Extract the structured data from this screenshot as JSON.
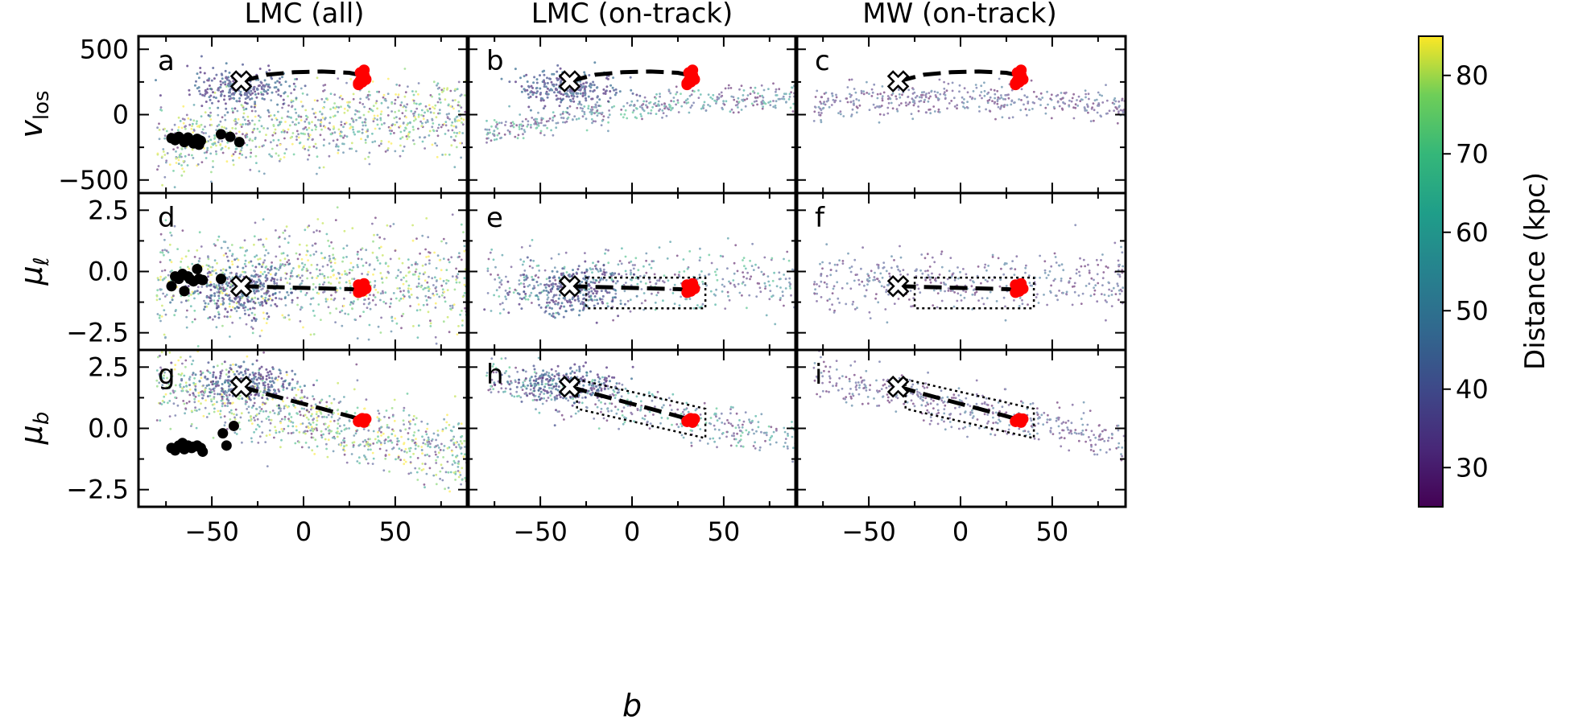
{
  "figure": {
    "column_titles": [
      "LMC (all)",
      "LMC (on-track)",
      "MW (on-track)"
    ],
    "xlabel": "b",
    "rows": [
      {
        "ylabel_main": "v",
        "ylabel_sub": "los",
        "ylim": [
          -600,
          600
        ],
        "yticks": [
          500,
          0,
          -500
        ],
        "ytick_labels": [
          "500",
          "0",
          "−500"
        ]
      },
      {
        "ylabel_main": "μ",
        "ylabel_sub": "ℓ",
        "ylim": [
          -3.2,
          3.2
        ],
        "yticks": [
          2.5,
          0,
          -2.5
        ],
        "ytick_labels": [
          "2.5",
          "0.0",
          "−2.5"
        ]
      },
      {
        "ylabel_main": "μ",
        "ylabel_sub": "b",
        "ylim": [
          -3.2,
          3.2
        ],
        "yticks": [
          2.5,
          0,
          -2.5
        ],
        "ytick_labels": [
          "2.5",
          "0.0",
          "−2.5"
        ]
      }
    ],
    "xlim": [
      -90,
      90
    ],
    "xticks": [
      -50,
      0,
      50
    ],
    "xtick_labels": [
      "−50",
      "0",
      "50"
    ],
    "panel_letters": [
      "a",
      "b",
      "c",
      "d",
      "e",
      "f",
      "g",
      "h",
      "i"
    ],
    "colorbar": {
      "label": "Distance (kpc)",
      "range": [
        25,
        85
      ],
      "ticks": [
        30,
        40,
        50,
        60,
        70,
        80
      ],
      "tick_labels": [
        "30",
        "40",
        "50",
        "60",
        "70",
        "80"
      ],
      "colormap": "viridis"
    }
  },
  "chart_data": {
    "type": "scatter",
    "layout": "3x3 grid",
    "x_variable": "b",
    "color_variable": "Distance (kpc)",
    "track": {
      "b": [
        -34,
        -20,
        -5,
        10,
        25,
        32
      ],
      "vlos": [
        255,
        305,
        325,
        330,
        320,
        300
      ],
      "mu_l": [
        -0.6,
        -0.63,
        -0.66,
        -0.69,
        -0.72,
        -0.75
      ],
      "mu_b": [
        1.7,
        1.4,
        1.1,
        0.8,
        0.5,
        0.35
      ]
    },
    "cross_marker": {
      "b": -34,
      "vlos": 255,
      "mu_l": -0.6,
      "mu_b": 1.7
    },
    "red_points": {
      "b": [
        30,
        31,
        32,
        33,
        31,
        32,
        34,
        30,
        33,
        32
      ],
      "vlos": [
        240,
        260,
        280,
        300,
        320,
        250,
        270,
        230,
        340,
        290
      ],
      "mu_l": [
        -0.55,
        -0.7,
        -0.8,
        -0.65,
        -0.75,
        -0.6,
        -0.7,
        -0.85,
        -0.5,
        -0.68
      ],
      "mu_b": [
        0.3,
        0.35,
        0.4,
        0.25,
        0.3,
        0.32,
        0.38,
        0.28,
        0.35,
        0.3
      ]
    },
    "black_points_panel_a": {
      "b": [
        -72,
        -70,
        -68,
        -66,
        -65,
        -63,
        -61,
        -60,
        -58,
        -57,
        -56,
        -45,
        -40,
        -35
      ],
      "vlos": [
        -180,
        -195,
        -170,
        -190,
        -210,
        -175,
        -200,
        -220,
        -185,
        -230,
        -200,
        -150,
        -170,
        -210
      ]
    },
    "black_points_panel_d": {
      "b": [
        -72,
        -70,
        -68,
        -66,
        -65,
        -63,
        -62,
        -60,
        -58,
        -57,
        -55,
        -45
      ],
      "mu_l": [
        -0.6,
        -0.2,
        -0.3,
        -0.1,
        -0.8,
        -0.2,
        -0.3,
        -0.4,
        0.1,
        -0.3,
        -0.35,
        -0.3
      ]
    },
    "black_points_panel_g": {
      "b": [
        -72,
        -70,
        -68,
        -66,
        -65,
        -63,
        -61,
        -60,
        -58,
        -56,
        -55,
        -44,
        -42,
        -38
      ],
      "mu_b": [
        -0.8,
        -0.9,
        -0.7,
        -0.6,
        -0.85,
        -0.7,
        -0.8,
        -0.75,
        -0.7,
        -0.8,
        -0.95,
        -0.2,
        -0.7,
        0.1
      ]
    },
    "selection_boxes": {
      "mu_l": {
        "b_range": [
          -25,
          40
        ],
        "mu_l_range": [
          -1.5,
          -0.25
        ],
        "panels": [
          "e",
          "f"
        ]
      },
      "mu_b": {
        "corners_b": [
          -30,
          40,
          40,
          -30
        ],
        "corners_mu_b": [
          2.0,
          0.8,
          -0.4,
          0.8
        ],
        "panels": [
          "h",
          "i"
        ]
      }
    }
  }
}
